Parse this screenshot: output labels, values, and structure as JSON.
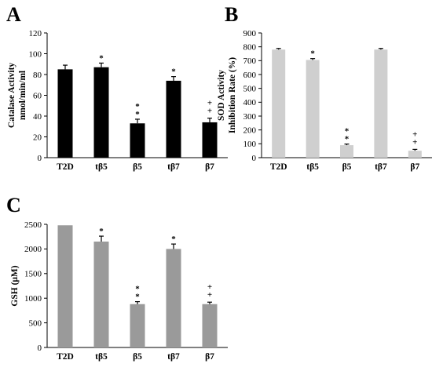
{
  "chart_data": [
    {
      "panel": "A",
      "type": "bar",
      "categories": [
        "T2D",
        "tβ5",
        "β5",
        "tβ7",
        "β7"
      ],
      "values": [
        85,
        87,
        33,
        74,
        34
      ],
      "errors": [
        4,
        4,
        4,
        4,
        4
      ],
      "significance": [
        "",
        "*",
        "* *",
        "*",
        "+ +"
      ],
      "ylabel": [
        "Catalase Activity",
        "nmol/min/ml"
      ],
      "ylim": [
        0,
        120
      ],
      "yticks": [
        0,
        20,
        40,
        60,
        80,
        100,
        120
      ],
      "bar_color": "#000000",
      "grid": false
    },
    {
      "panel": "B",
      "type": "bar",
      "categories": [
        "T2D",
        "tβ5",
        "β5",
        "tβ7",
        "β7"
      ],
      "values": [
        780,
        705,
        90,
        780,
        50
      ],
      "errors": [
        8,
        10,
        8,
        8,
        10
      ],
      "significance": [
        "",
        "*",
        "* *",
        "",
        "+ +"
      ],
      "ylabel": [
        "SOD Activity",
        "Inhibition Rate (%)"
      ],
      "ylim": [
        0,
        900
      ],
      "yticks": [
        0,
        100,
        200,
        300,
        400,
        500,
        600,
        700,
        800,
        900
      ],
      "bar_color": "#cfcfcf",
      "grid": false
    },
    {
      "panel": "C",
      "type": "bar",
      "categories": [
        "T2D",
        "tβ5",
        "β5",
        "tβ7",
        "β7"
      ],
      "values": [
        2480,
        2150,
        880,
        2000,
        880
      ],
      "errors": [
        0,
        110,
        50,
        100,
        40
      ],
      "significance": [
        "",
        "*",
        "* *",
        "*",
        "+ +"
      ],
      "ylabel": [
        "GSH (μM)"
      ],
      "ylim": [
        0,
        2500
      ],
      "yticks": [
        0,
        500,
        1000,
        1500,
        2000,
        2500
      ],
      "bar_color": "#9a9a9a",
      "grid": false
    }
  ]
}
